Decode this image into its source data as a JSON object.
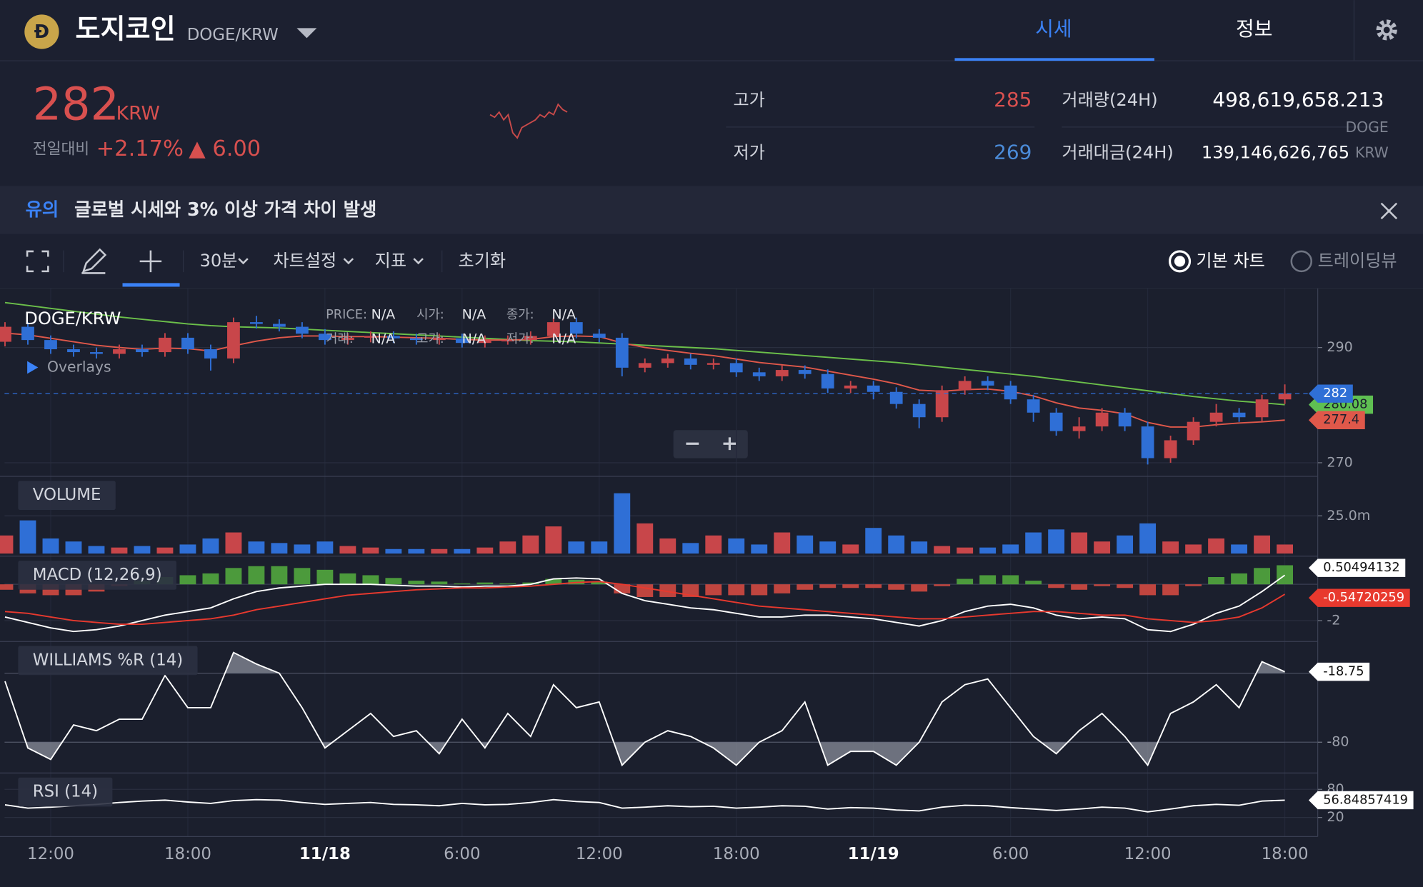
{
  "header": {
    "logo": "Ð",
    "name": "도지코인",
    "pair": "DOGE/KRW",
    "tabs": [
      "시세",
      "정보"
    ]
  },
  "ticker": {
    "price": "282",
    "currency": "KRW",
    "change_label": "전일대비",
    "change_rate": "+2.17%",
    "change_amount": "▲ 6.00",
    "high_label": "고가",
    "high": "285",
    "low_label": "저가",
    "low": "269",
    "volume_label": "거래량(24H)",
    "volume": "498,619,658.213",
    "volume_unit": "DOGE",
    "value_label": "거래대금(24H)",
    "value": "139,146,626,765",
    "value_unit": "KRW",
    "sparkline": {
      "color": "#c84a4a",
      "values": [
        5,
        4,
        6,
        3,
        5,
        -2,
        -4,
        0,
        1,
        2,
        3,
        5,
        4,
        6,
        5,
        9,
        7,
        6
      ]
    }
  },
  "notice": {
    "label": "유의",
    "message": "글로벌 시세와 3% 이상 가격 차이 발생"
  },
  "toolbar": {
    "interval": "30분",
    "settings": "차트설정",
    "indicators": "지표",
    "reset": "초기화",
    "basic_chart": "기본 차트",
    "tradingview": "트레이딩뷰"
  },
  "chart_data": [
    {
      "type": "candlestick",
      "title": "DOGE/KRW",
      "overlays": "Overlays",
      "info": [
        {
          "label": "PRICE:",
          "value": "N/A"
        },
        {
          "label": "시가:",
          "value": "N/A"
        },
        {
          "label": "종가:",
          "value": "N/A"
        },
        {
          "label": "거래:",
          "value": "N/A"
        },
        {
          "label": "고가:",
          "value": "N/A"
        },
        {
          "label": "저가:",
          "value": "N/A"
        }
      ],
      "up_color": "#c8464a",
      "down_color": "#2f6fd6",
      "xlim": [
        -0.02,
        57.44
      ],
      "ylim": [
        267.64,
        300.24
      ],
      "yticks": [
        270,
        290
      ],
      "grid": true,
      "open": [
        291.0,
        293.6,
        291.3,
        289.7,
        289.2,
        288.9,
        289.7,
        289.2,
        291.7,
        289.7,
        288.1,
        294.4,
        294.1,
        293.6,
        292.4,
        291.3,
        291.7,
        292.0,
        291.6,
        291.3,
        291.6,
        290.8,
        291.3,
        291.3,
        292.0,
        294.4,
        292.4,
        291.7,
        286.5,
        287.3,
        288.1,
        287.0,
        287.3,
        285.7,
        285.0,
        286.1,
        285.4,
        282.9,
        283.4,
        282.3,
        280.2,
        277.9,
        282.6,
        284.2,
        283.4,
        281.0,
        278.7,
        275.5,
        276.3,
        278.7,
        276.3,
        270.8,
        273.9,
        277.1,
        278.7,
        277.9,
        281.0
      ],
      "high": [
        294.4,
        294.4,
        292.1,
        290.5,
        290.0,
        290.5,
        290.5,
        292.5,
        292.5,
        290.5,
        295.2,
        295.5,
        294.9,
        294.4,
        293.2,
        292.5,
        292.8,
        292.8,
        292.4,
        292.4,
        292.4,
        292.1,
        292.1,
        292.8,
        295.2,
        295.2,
        293.2,
        292.5,
        288.1,
        288.9,
        288.9,
        288.1,
        288.1,
        286.5,
        286.9,
        286.9,
        286.2,
        284.2,
        284.2,
        283.1,
        281.0,
        283.4,
        285.0,
        285.0,
        284.2,
        281.8,
        279.5,
        277.9,
        279.5,
        279.5,
        277.1,
        274.7,
        277.9,
        280.2,
        279.5,
        281.8,
        283.6
      ],
      "low": [
        290.2,
        290.5,
        288.9,
        288.4,
        288.1,
        288.1,
        288.4,
        288.4,
        288.9,
        286.0,
        287.3,
        293.3,
        292.8,
        291.6,
        290.5,
        290.5,
        290.9,
        290.8,
        290.5,
        290.5,
        290.0,
        290.0,
        290.5,
        290.5,
        291.2,
        291.6,
        290.9,
        285.0,
        285.7,
        286.5,
        286.2,
        286.2,
        284.9,
        284.2,
        284.2,
        284.6,
        282.1,
        282.1,
        281.0,
        279.4,
        276.0,
        277.1,
        281.8,
        282.6,
        280.2,
        277.1,
        274.7,
        274.2,
        275.5,
        275.5,
        269.7,
        270.0,
        273.1,
        276.3,
        277.1,
        277.1,
        280.2
      ],
      "close": [
        293.6,
        291.3,
        289.7,
        289.2,
        288.9,
        289.7,
        289.2,
        291.7,
        289.7,
        288.1,
        294.4,
        294.1,
        293.6,
        292.4,
        291.3,
        291.7,
        292.0,
        291.6,
        291.3,
        291.6,
        290.8,
        291.3,
        291.3,
        292.0,
        294.4,
        292.4,
        291.7,
        286.5,
        287.3,
        288.1,
        287.0,
        287.3,
        285.7,
        285.0,
        286.1,
        285.4,
        282.9,
        283.4,
        282.3,
        280.2,
        277.9,
        282.6,
        284.2,
        283.4,
        281.0,
        278.7,
        275.5,
        276.3,
        278.7,
        276.3,
        270.8,
        273.9,
        277.1,
        278.7,
        277.9,
        281.0,
        282
      ],
      "series": [
        {
          "color": "#6cc04a",
          "values": [
            297.8,
            297.3,
            296.8,
            296.3,
            295.8,
            295.3,
            294.9,
            294.5,
            294.1,
            293.8,
            293.6,
            293.5,
            293.4,
            293.2,
            293.0,
            292.8,
            292.6,
            292.4,
            292.2,
            292.0,
            291.8,
            291.6,
            291.4,
            291.2,
            291.1,
            291.0,
            290.8,
            290.6,
            290.4,
            290.2,
            290.0,
            289.8,
            289.5,
            289.2,
            288.9,
            288.6,
            288.3,
            288.0,
            287.7,
            287.4,
            287.0,
            286.6,
            286.2,
            285.8,
            285.4,
            285.0,
            284.5,
            284.0,
            283.5,
            283.0,
            282.5,
            282.0,
            281.5,
            281.1,
            280.7,
            280.4,
            280.08
          ]
        },
        {
          "color": "#e0584a",
          "values": [
            292.5,
            292.2,
            291.6,
            291.0,
            290.4,
            290.0,
            289.7,
            289.9,
            289.8,
            289.4,
            290.3,
            291.1,
            291.7,
            292.0,
            292.0,
            291.9,
            291.9,
            291.8,
            291.7,
            291.6,
            291.4,
            291.3,
            291.3,
            291.4,
            291.9,
            292.0,
            291.9,
            290.8,
            290.0,
            289.5,
            289.0,
            288.6,
            288.0,
            287.4,
            287.0,
            286.6,
            285.9,
            285.2,
            284.5,
            283.7,
            282.6,
            282.4,
            282.7,
            282.8,
            282.4,
            281.6,
            280.4,
            279.5,
            279.1,
            278.5,
            277.0,
            276.2,
            276.2,
            276.6,
            276.9,
            277.1,
            277.4
          ]
        }
      ]
    },
    {
      "type": "bar",
      "title": "VOLUME",
      "xlim": [
        -0.02,
        57.44
      ],
      "ylim": [
        -1740000,
        51200000
      ],
      "yticks": [
        {
          "value": 25000000,
          "label": "25.0m"
        }
      ],
      "values": [
        12000000.0,
        22000000.0,
        10000000.0,
        8000000.0,
        5000000.0,
        4000000.0,
        5000000.0,
        4000000.0,
        6000000.0,
        10000000.0,
        14000000.0,
        8000000.0,
        7000000.0,
        6000000.0,
        8000000.0,
        5000000.0,
        4000000.0,
        3000000.0,
        3000000.0,
        3000000.0,
        3000000.0,
        4000000.0,
        8000000.0,
        12000000.0,
        18000000.0,
        8000000.0,
        8000000.0,
        40000000.0,
        20000000.0,
        10000000.0,
        7000000.0,
        12000000.0,
        10000000.0,
        6000000.0,
        14000000.0,
        12000000.0,
        8000000.0,
        6000000.0,
        17000000.0,
        12000000.0,
        8000000.0,
        5000000.0,
        4000000.0,
        4000000.0,
        6000000.0,
        14000000.0,
        16000000.0,
        14000000.0,
        8000000.0,
        12000000.0,
        20000000.0,
        8000000.0,
        6000000.0,
        10000000.0,
        6000000.0,
        12000000.0,
        6000000.0
      ]
    },
    {
      "type": "macd",
      "title": "MACD (12,26,9)",
      "xlim": [
        -0.02,
        57.44
      ],
      "ylim": [
        -3.15,
        1.55
      ],
      "yticks": [
        -2
      ],
      "up_color": "#4c9a3c",
      "down_color": "#c0453f",
      "histogram": [
        -0.3,
        -0.5,
        -0.6,
        -0.6,
        -0.4,
        -0.1,
        0.2,
        0.4,
        0.5,
        0.6,
        0.9,
        1.0,
        1.0,
        0.9,
        0.8,
        0.6,
        0.5,
        0.35,
        0.2,
        0.15,
        0.05,
        0.1,
        0.05,
        0.1,
        0.3,
        0.25,
        0.15,
        -0.5,
        -0.7,
        -0.7,
        -0.7,
        -0.6,
        -0.6,
        -0.6,
        -0.5,
        -0.3,
        -0.2,
        -0.2,
        -0.2,
        -0.3,
        -0.4,
        -0.1,
        0.3,
        0.5,
        0.5,
        0.2,
        -0.2,
        -0.3,
        -0.1,
        -0.2,
        -0.6,
        -0.6,
        -0.1,
        0.4,
        0.6,
        0.9,
        1.05
      ],
      "series": [
        {
          "color": "#ffffff",
          "values": [
            -1.8,
            -2.1,
            -2.4,
            -2.6,
            -2.5,
            -2.3,
            -2.0,
            -1.7,
            -1.5,
            -1.3,
            -0.8,
            -0.4,
            -0.2,
            -0.1,
            0.0,
            0.0,
            0.0,
            -0.05,
            -0.1,
            -0.1,
            -0.15,
            -0.1,
            -0.1,
            0.0,
            0.3,
            0.35,
            0.3,
            -0.5,
            -0.9,
            -1.1,
            -1.3,
            -1.4,
            -1.6,
            -1.8,
            -1.8,
            -1.7,
            -1.7,
            -1.8,
            -1.9,
            -2.1,
            -2.3,
            -2.0,
            -1.5,
            -1.2,
            -1.1,
            -1.3,
            -1.7,
            -1.9,
            -1.8,
            -1.9,
            -2.5,
            -2.6,
            -2.2,
            -1.6,
            -1.2,
            -0.4,
            0.50494132
          ]
        },
        {
          "color": "#e8392e",
          "values": [
            -1.5,
            -1.6,
            -1.8,
            -2.0,
            -2.1,
            -2.2,
            -2.2,
            -2.1,
            -2.0,
            -1.9,
            -1.7,
            -1.4,
            -1.2,
            -1.0,
            -0.8,
            -0.6,
            -0.5,
            -0.4,
            -0.3,
            -0.25,
            -0.2,
            -0.2,
            -0.15,
            -0.1,
            0.0,
            0.1,
            0.15,
            0.0,
            -0.2,
            -0.4,
            -0.6,
            -0.8,
            -1.0,
            -1.2,
            -1.3,
            -1.4,
            -1.5,
            -1.6,
            -1.7,
            -1.8,
            -1.9,
            -1.9,
            -1.8,
            -1.7,
            -1.6,
            -1.5,
            -1.5,
            -1.6,
            -1.7,
            -1.7,
            -1.9,
            -2.0,
            -2.1,
            -2.0,
            -1.8,
            -1.3,
            -0.54720259
          ]
        }
      ]
    },
    {
      "type": "line",
      "title": "WILLIAMS %R (14)",
      "xlim": [
        -0.02,
        57.44
      ],
      "ylim": [
        -106.8,
        7.6
      ],
      "yticks": [
        -80
      ],
      "bands": [
        -20,
        -80
      ],
      "series": [
        {
          "color": "#ffffff",
          "values": [
            -27,
            -85,
            -95,
            -65,
            -70,
            -60,
            -60,
            -22,
            -50,
            -50,
            -2,
            -12,
            -20,
            -50,
            -85,
            -70,
            -55,
            -75,
            -70,
            -90,
            -60,
            -85,
            -55,
            -75,
            -30,
            -50,
            -45,
            -100,
            -80,
            -70,
            -75,
            -85,
            -100,
            -80,
            -70,
            -45,
            -100,
            -88,
            -88,
            -100,
            -80,
            -45,
            -30,
            -25,
            -50,
            -75,
            -90,
            -70,
            -55,
            -75,
            -100,
            -55,
            -45,
            -30,
            -50,
            -10,
            -18.75
          ]
        }
      ]
    },
    {
      "type": "line",
      "title": "RSI (14)",
      "xlim": [
        -0.02,
        57.44
      ],
      "ylim": [
        -20.6,
        114.8
      ],
      "yticks": [
        80,
        20
      ],
      "xticks": [
        {
          "value": 2,
          "label": "12:00"
        },
        {
          "value": 8,
          "label": "18:00"
        },
        {
          "value": 14,
          "label": "11/18"
        },
        {
          "value": 20,
          "label": "6:00"
        },
        {
          "value": 26,
          "label": "12:00"
        },
        {
          "value": 32,
          "label": "18:00"
        },
        {
          "value": 38,
          "label": "11/19"
        },
        {
          "value": 44,
          "label": "6:00"
        },
        {
          "value": 50,
          "label": "12:00"
        },
        {
          "value": 56,
          "label": "18:00"
        }
      ],
      "series": [
        {
          "color": "#ffffff",
          "values": [
            47,
            40,
            42,
            45,
            48,
            52,
            55,
            57,
            53,
            50,
            56,
            58,
            57,
            52,
            48,
            50,
            52,
            48,
            47,
            45,
            50,
            47,
            48,
            52,
            58,
            54,
            52,
            40,
            42,
            45,
            43,
            44,
            40,
            42,
            45,
            44,
            38,
            41,
            40,
            36,
            34,
            42,
            46,
            45,
            41,
            38,
            35,
            38,
            42,
            40,
            32,
            38,
            45,
            48,
            46,
            55,
            56.84857419
          ]
        }
      ]
    }
  ]
}
